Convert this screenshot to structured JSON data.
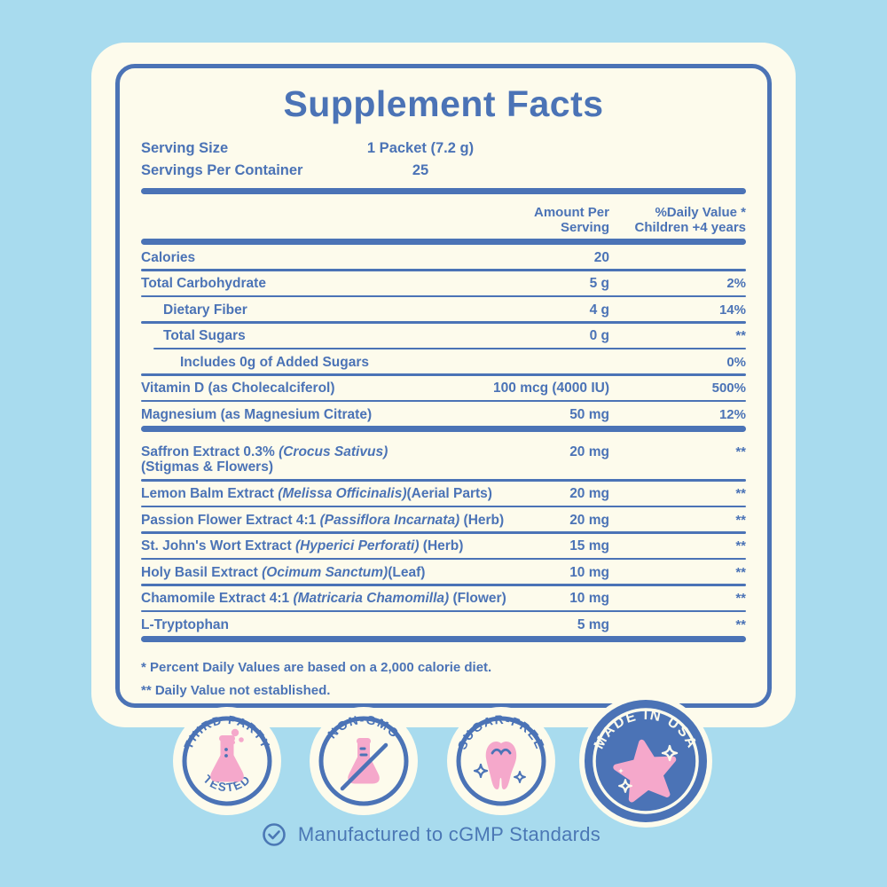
{
  "colors": {
    "background": "#A8DBEE",
    "card": "#FDFBEC",
    "blue": "#4B73B6",
    "pink": "#F5A8CB",
    "white": "#FFFFFF"
  },
  "title": "Supplement Facts",
  "serving": {
    "size_label": "Serving Size",
    "size_value": "1 Packet (7.2 g)",
    "count_label": "Servings Per Container",
    "count_value": "25"
  },
  "table": {
    "header": {
      "amount_1": "Amount Per",
      "amount_2": "Serving",
      "daily_1": "%Daily Value *",
      "daily_2": "Children +4 years"
    },
    "rows": [
      {
        "name": [
          {
            "text": "Calories",
            "italic": false
          }
        ],
        "indent": 0,
        "amount": "20",
        "dv": "",
        "sep": "thin"
      },
      {
        "name": [
          {
            "text": "Total Carbohydrate",
            "italic": false
          }
        ],
        "indent": 0,
        "amount": "5 g",
        "dv": "2%",
        "sep": "thin"
      },
      {
        "name": [
          {
            "text": "Dietary Fiber",
            "italic": false
          }
        ],
        "indent": 1,
        "amount": "4 g",
        "dv": "14%",
        "sep": "thin"
      },
      {
        "name": [
          {
            "text": "Total Sugars",
            "italic": false
          }
        ],
        "indent": 1,
        "amount": "0 g",
        "dv": "**",
        "sep": "thin-indent"
      },
      {
        "name": [
          {
            "text": "Includes 0g of Added Sugars",
            "italic": false
          }
        ],
        "indent": 2,
        "amount": "",
        "dv": "0%",
        "sep": "thin"
      },
      {
        "name": [
          {
            "text": "Vitamin D (as Cholecalciferol)",
            "italic": false
          }
        ],
        "indent": 0,
        "amount": "100 mcg (4000 IU)",
        "dv": "500%",
        "sep": "thin"
      },
      {
        "name": [
          {
            "text": "Magnesium  (as Magnesium Citrate)",
            "italic": false
          }
        ],
        "indent": 0,
        "amount": "50 mg",
        "dv": "12%",
        "sep": "thick"
      },
      {
        "name": [
          {
            "text": "Saffron Extract 0.3% ",
            "italic": false
          },
          {
            "text": "(Crocus Sativus)",
            "italic": true
          }
        ],
        "name2": "(Stigmas & Flowers)",
        "indent": 0,
        "amount": "20 mg",
        "dv": "**",
        "sep": "thin",
        "gap_top": true
      },
      {
        "name": [
          {
            "text": "Lemon Balm Extract ",
            "italic": false
          },
          {
            "text": "(Melissa Officinalis)",
            "italic": true
          },
          {
            "text": "(Aerial Parts)",
            "italic": false
          }
        ],
        "indent": 0,
        "amount": "20 mg",
        "dv": "**",
        "sep": "thin"
      },
      {
        "name": [
          {
            "text": "Passion Flower Extract 4:1 ",
            "italic": false
          },
          {
            "text": "(Passiflora Incarnata)",
            "italic": true
          },
          {
            "text": " (Herb)",
            "italic": false
          }
        ],
        "indent": 0,
        "amount": "20 mg",
        "dv": "**",
        "sep": "thin"
      },
      {
        "name": [
          {
            "text": "St. John's Wort Extract  ",
            "italic": false
          },
          {
            "text": "(Hyperici Perforati)",
            "italic": true
          },
          {
            "text": " (Herb)",
            "italic": false
          }
        ],
        "indent": 0,
        "amount": "15 mg",
        "dv": "**",
        "sep": "thin"
      },
      {
        "name": [
          {
            "text": "Holy Basil Extract  ",
            "italic": false
          },
          {
            "text": "(Ocimum Sanctum)",
            "italic": true
          },
          {
            "text": "(Leaf)",
            "italic": false
          }
        ],
        "indent": 0,
        "amount": "10 mg",
        "dv": "**",
        "sep": "thin"
      },
      {
        "name": [
          {
            "text": "Chamomile Extract 4:1 ",
            "italic": false
          },
          {
            "text": "(Matricaria Chamomilla)",
            "italic": true
          },
          {
            "text": " (Flower)",
            "italic": false
          }
        ],
        "indent": 0,
        "amount": "10 mg",
        "dv": "**",
        "sep": "thin"
      },
      {
        "name": [
          {
            "text": "L-Tryptophan",
            "italic": false
          }
        ],
        "indent": 0,
        "amount": "5 mg",
        "dv": "**",
        "sep": "thick"
      }
    ]
  },
  "footnotes": [
    "* Percent Daily Values are based on a 2,000 calorie diet.",
    "** Daily Value not established."
  ],
  "badges": [
    {
      "id": "third-party-tested",
      "arc_text": "THIRD PARTY",
      "bottom_text": "TESTED",
      "icon": "flask-icon"
    },
    {
      "id": "non-gmo",
      "arc_text": "NON-GMO",
      "bottom_text": "",
      "icon": "flask-crossed-icon"
    },
    {
      "id": "sugar-free",
      "arc_text": "SUGAR-FREE",
      "bottom_text": "",
      "icon": "tooth-icon"
    },
    {
      "id": "made-in-usa",
      "arc_text": "MADE IN USA",
      "bottom_text": "",
      "icon": "star-icon"
    }
  ],
  "footer_note": {
    "icon": "check-circle-icon",
    "text": "Manufactured to cGMP Standards"
  }
}
